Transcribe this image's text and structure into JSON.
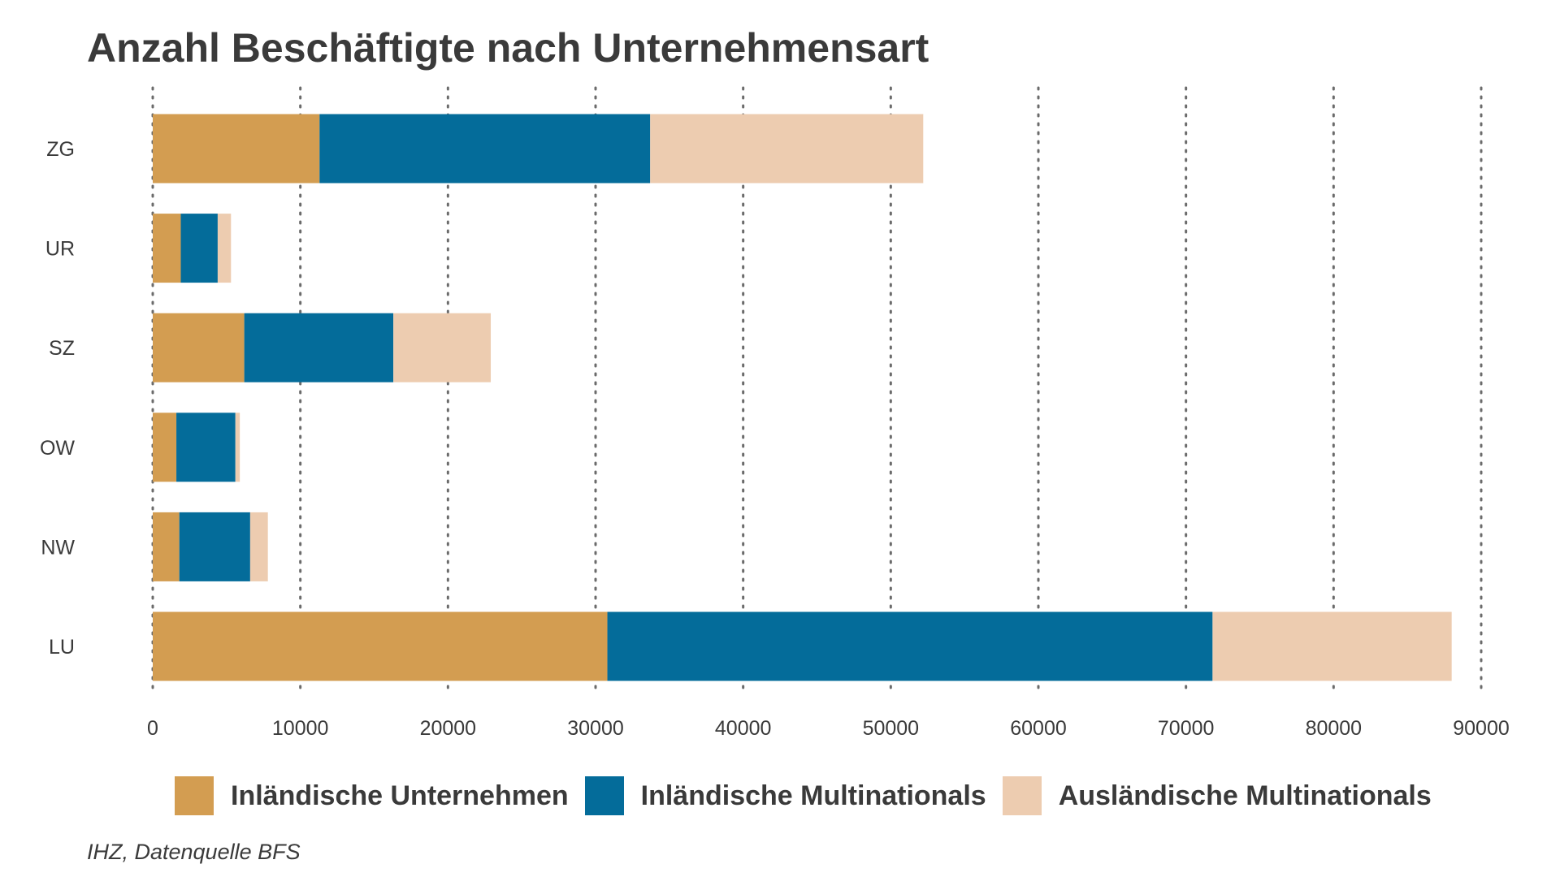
{
  "chart_data": {
    "type": "bar",
    "orientation": "horizontal",
    "stacked": true,
    "title": "Anzahl Beschäftigte nach Unternehmensart",
    "caption": "IHZ, Datenquelle BFS",
    "categories": [
      "ZG",
      "UR",
      "SZ",
      "OW",
      "NW",
      "LU"
    ],
    "series": [
      {
        "name": "Inländische Unternehmen",
        "color": "#D39D51",
        "values": [
          11300,
          1900,
          6200,
          1600,
          1800,
          30800
        ]
      },
      {
        "name": "Inländische Multinationals",
        "color": "#046C9A",
        "values": [
          22400,
          2500,
          10100,
          4000,
          4800,
          41000
        ]
      },
      {
        "name": "Ausländische Multinationals",
        "color": "#EDCCB0",
        "values": [
          18500,
          900,
          6600,
          300,
          1200,
          16200
        ]
      }
    ],
    "x_ticks": [
      "0",
      "10000",
      "20000",
      "30000",
      "40000",
      "50000",
      "60000",
      "70000",
      "80000",
      "90000"
    ],
    "xlim": [
      0,
      90000
    ],
    "xlabel": "",
    "ylabel": "",
    "grid": "vertical dotted",
    "legend_position": "bottom"
  }
}
